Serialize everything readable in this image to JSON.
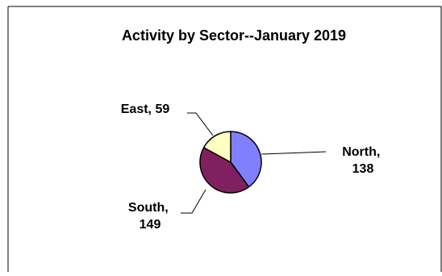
{
  "chart_data": {
    "type": "pie",
    "title": "Activity by Sector--January 2019",
    "categories": [
      "North",
      "South",
      "East"
    ],
    "values": [
      138,
      149,
      59
    ],
    "labels": [
      {
        "name": "North",
        "value_text": "138",
        "lines": [
          "North,",
          "138"
        ]
      },
      {
        "name": "South",
        "value_text": "149",
        "lines": [
          "South,",
          "149"
        ]
      },
      {
        "name": "East",
        "value_text": "59",
        "lines": [
          "East, 59"
        ]
      }
    ],
    "colors": {
      "North": "#8080ff",
      "South": "#802060",
      "East": "#ffffc0"
    },
    "legend": "none"
  }
}
